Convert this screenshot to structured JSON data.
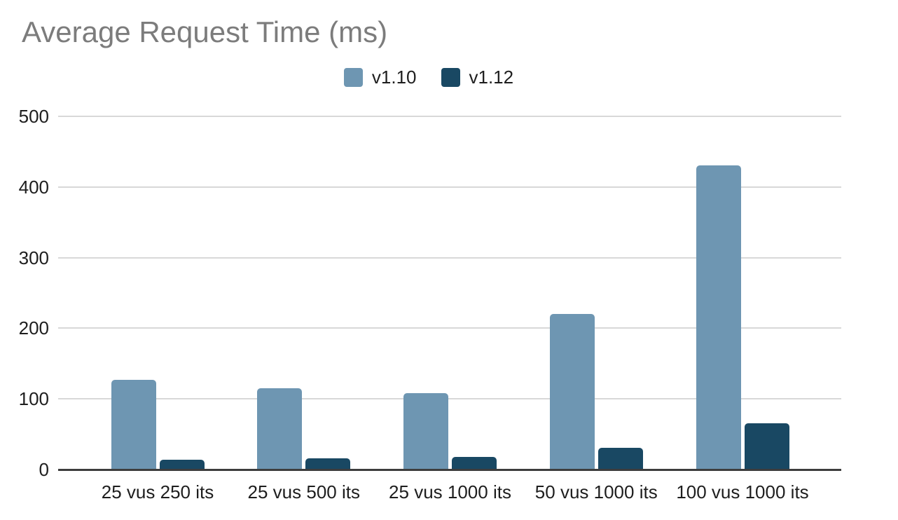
{
  "title": "Average Request Time (ms)",
  "legend": [
    {
      "label": "v1.10",
      "color": "#6e96b2"
    },
    {
      "label": "v1.12",
      "color": "#194863"
    }
  ],
  "colors": {
    "series_v1_10": "#6e96b2",
    "series_v1_12": "#194863",
    "title_text": "#7c7c7c",
    "axis_text": "#1e1e1e",
    "gridline": "#d8d8d8",
    "axis_line": "#3d3d3d",
    "background": "#ffffff"
  },
  "chart_data": {
    "type": "bar",
    "title": "Average Request Time (ms)",
    "xlabel": "",
    "ylabel": "",
    "categories": [
      "25 vus 250 its",
      "25 vus 500 its",
      "25 vus 1000 its",
      "50 vus 1000 its",
      "100 vus 1000 its"
    ],
    "series": [
      {
        "name": "v1.10",
        "color": "#6e96b2",
        "values": [
          127,
          115,
          108,
          220,
          431
        ]
      },
      {
        "name": "v1.12",
        "color": "#194863",
        "values": [
          14,
          16,
          18,
          31,
          65
        ]
      }
    ],
    "ylim": [
      0,
      500
    ],
    "yticks": [
      0,
      100,
      200,
      300,
      400,
      500
    ],
    "grid": true,
    "legend_position": "top-center"
  }
}
